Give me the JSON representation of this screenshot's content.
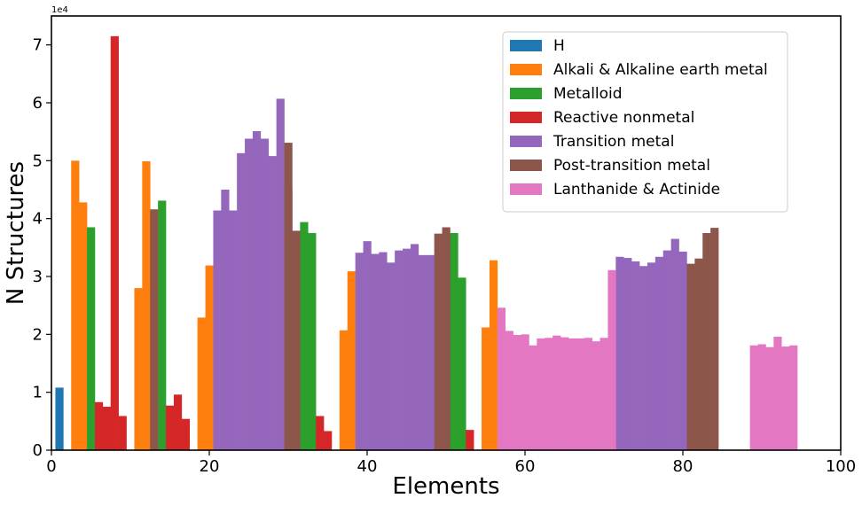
{
  "chart_data": {
    "type": "bar",
    "xlabel": "Elements",
    "ylabel": "N Structures",
    "y_scale_label": "1e4",
    "xlim": [
      0,
      100
    ],
    "ylim": [
      0,
      75000
    ],
    "x_ticks": [
      0,
      20,
      40,
      60,
      80,
      100
    ],
    "y_ticks": [
      0,
      10000,
      20000,
      30000,
      40000,
      50000,
      60000,
      70000
    ],
    "y_tick_labels": [
      "0",
      "1",
      "2",
      "3",
      "4",
      "5",
      "6",
      "7"
    ],
    "x_tick_labels": [
      "0",
      "20",
      "40",
      "60",
      "80",
      "100"
    ],
    "grid": false,
    "legend_position": "top-right",
    "series": [
      {
        "name": "H",
        "color": "#1f77b4",
        "x": [
          1
        ],
        "values": [
          10800
        ]
      },
      {
        "name": "Alkali & Alkaline earth metal",
        "color": "#ff7f0e",
        "x": [
          3,
          4,
          11,
          12,
          19,
          20,
          37,
          38,
          55,
          56
        ],
        "values": [
          50000,
          42800,
          28000,
          49900,
          22900,
          31900,
          20700,
          30900,
          21200,
          32800
        ]
      },
      {
        "name": "Metalloid",
        "color": "#2ca02c",
        "x": [
          5,
          14,
          32,
          33,
          51,
          52
        ],
        "values": [
          38500,
          43100,
          39400,
          37500,
          37500,
          29800
        ]
      },
      {
        "name": "Reactive nonmetal",
        "color": "#d62728",
        "x": [
          6,
          7,
          8,
          9,
          15,
          16,
          17,
          34,
          35,
          53
        ],
        "values": [
          8300,
          7500,
          71500,
          5900,
          7700,
          9600,
          5400,
          5900,
          3300,
          3500
        ]
      },
      {
        "name": "Transition metal",
        "color": "#9467bd",
        "x": [
          21,
          22,
          23,
          24,
          25,
          26,
          27,
          28,
          29,
          30,
          39,
          40,
          41,
          42,
          43,
          44,
          45,
          46,
          47,
          48,
          72,
          73,
          74,
          75,
          76,
          77,
          78,
          79,
          80
        ],
        "values": [
          41400,
          45000,
          41400,
          51300,
          53800,
          55100,
          53800,
          50800,
          60700,
          45300,
          34100,
          36100,
          33900,
          34200,
          32400,
          34500,
          34800,
          35600,
          33700,
          33700,
          33400,
          33200,
          32600,
          31800,
          32400,
          33400,
          34500,
          36500,
          34300
        ]
      },
      {
        "name": "Post-transition metal",
        "color": "#8c564b",
        "x": [
          13,
          31,
          49,
          50,
          81,
          82,
          83
        ],
        "values": [
          41600,
          37900,
          37400,
          38500,
          32200,
          33100,
          37500
        ]
      },
      {
        "name": "Lanthanide & Actinide",
        "color": "#e377c2",
        "x": [
          57,
          58,
          59,
          60,
          61,
          62,
          63,
          64,
          65,
          66,
          67,
          68,
          69,
          70,
          71,
          89,
          90,
          91,
          92,
          93,
          94
        ],
        "values": [
          24600,
          20600,
          19900,
          20000,
          18100,
          19300,
          19400,
          19800,
          19500,
          19300,
          19300,
          19400,
          18800,
          19400,
          31100,
          18100,
          18300,
          17800,
          19600,
          17900,
          18100
        ]
      }
    ],
    "extra_bars": [
      {
        "x": 30,
        "value": 53100,
        "series": "Post-transition metal"
      },
      {
        "x": 84,
        "value": 38400,
        "series": "Post-transition metal"
      }
    ]
  }
}
